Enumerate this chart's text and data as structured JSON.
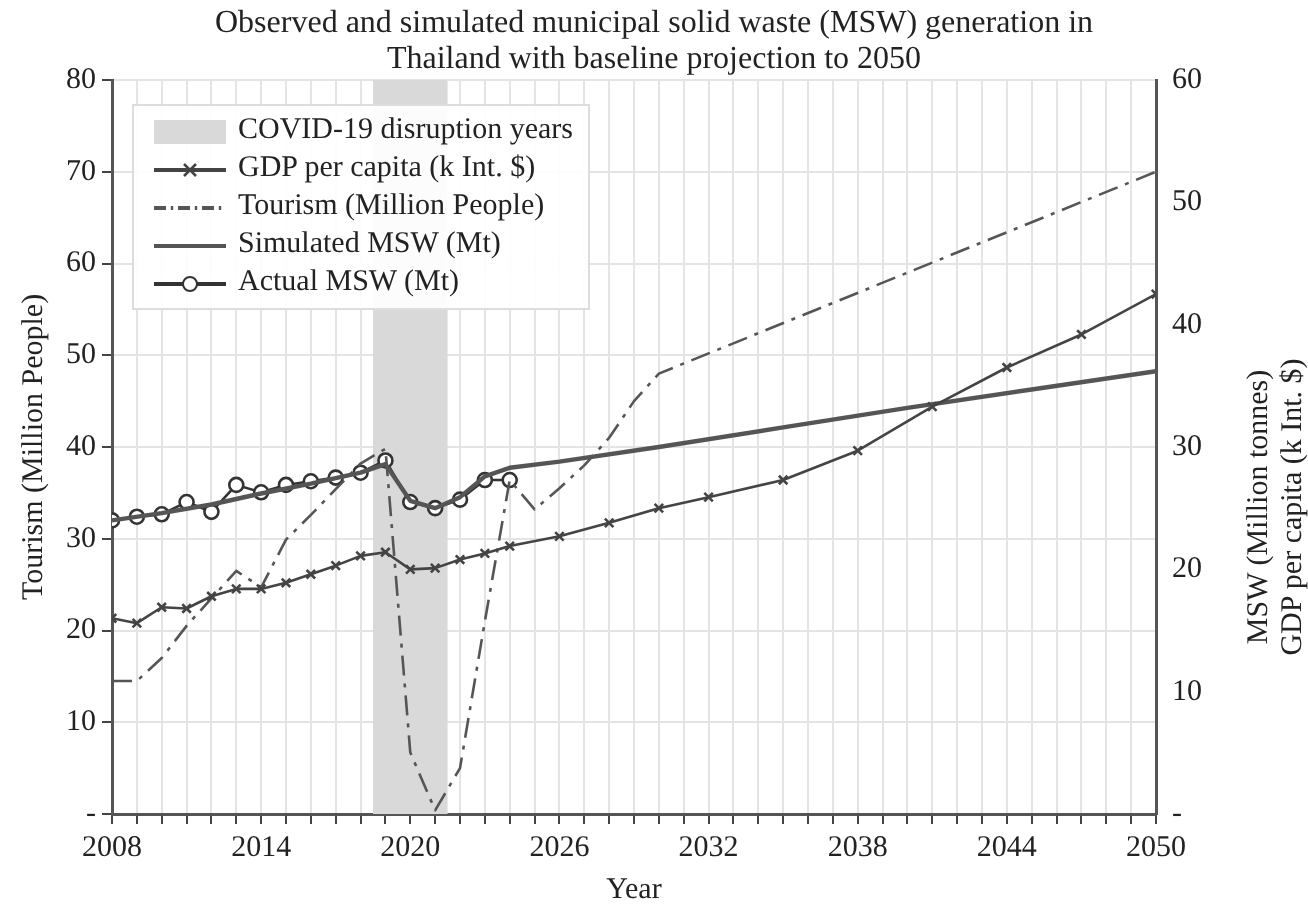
{
  "chart_data": {
    "type": "line",
    "title": "Observed and simulated municipal solid waste (MSW) generation in Thailand with baseline projection to 2050",
    "xlabel": "Year",
    "ylabel": "Tourism (Million People)",
    "y2label": "MSW (Million tonnes)\nGDP per capita (k Int. $)",
    "xlim": [
      2008,
      2050
    ],
    "xticks": [
      2008,
      {
        "value": 2009,
        "label": null
      },
      {
        "value": 2010,
        "label": null
      },
      {
        "value": 2011,
        "label": null
      },
      {
        "value": 2012,
        "label": null
      },
      {
        "value": 2013,
        "label": null
      },
      2014,
      {
        "value": 2015,
        "label": null
      },
      {
        "value": 2016,
        "label": null
      },
      {
        "value": 2017,
        "label": null
      },
      {
        "value": 2018,
        "label": null
      },
      {
        "value": 2019,
        "label": null
      },
      2020,
      {
        "value": 2021,
        "label": null
      },
      {
        "value": 2022,
        "label": null
      },
      {
        "value": 2023,
        "label": null
      },
      {
        "value": 2024,
        "label": null
      },
      {
        "value": 2025,
        "label": null
      },
      2026,
      {
        "value": 2027,
        "label": null
      },
      {
        "value": 2028,
        "label": null
      },
      {
        "value": 2029,
        "label": null
      },
      {
        "value": 2030,
        "label": null
      },
      {
        "value": 2031,
        "label": null
      },
      2032,
      {
        "value": 2033,
        "label": null
      },
      {
        "value": 2034,
        "label": null
      },
      {
        "value": 2035,
        "label": null
      },
      {
        "value": 2036,
        "label": null
      },
      {
        "value": 2037,
        "label": null
      },
      2038,
      {
        "value": 2039,
        "label": null
      },
      {
        "value": 2040,
        "label": null
      },
      {
        "value": 2041,
        "label": null
      },
      {
        "value": 2042,
        "label": null
      },
      {
        "value": 2043,
        "label": null
      },
      2044,
      {
        "value": 2045,
        "label": null
      },
      {
        "value": 2046,
        "label": null
      },
      {
        "value": 2047,
        "label": null
      },
      {
        "value": 2048,
        "label": null
      },
      {
        "value": 2049,
        "label": null
      },
      2050
    ],
    "ylim": [
      0,
      80
    ],
    "yticks": [
      {
        "value": 0,
        "label": "-"
      },
      10,
      20,
      30,
      40,
      50,
      60,
      70,
      80
    ],
    "y2lim": [
      0,
      60
    ],
    "y2ticks": [
      {
        "value": 0,
        "label": "-"
      },
      10,
      20,
      30,
      40,
      50,
      60
    ],
    "grid": true,
    "legend": "top left",
    "bands": [
      {
        "axis": "x",
        "from": 2018.5,
        "to": 2021.5,
        "label": "COVID-19 disruption years",
        "color": "#d9d9d9"
      }
    ],
    "series": [
      {
        "name": "GDP per capita (k Int. $)",
        "color": "#444444",
        "axis": "y2",
        "marker": "cross",
        "line_style": "solid",
        "x": [
          2008,
          2009,
          2010,
          2011,
          2012,
          2013,
          2014,
          2015,
          2016,
          2017,
          2018,
          2019,
          2020,
          2021,
          2022,
          2023,
          2024,
          2026,
          2028,
          2030,
          2032,
          2035,
          2038,
          2041,
          2044,
          2047,
          2050
        ],
        "values": [
          16.0,
          15.6,
          16.9,
          16.8,
          17.8,
          18.4,
          18.4,
          18.9,
          19.6,
          20.3,
          21.1,
          21.4,
          20.0,
          20.1,
          20.8,
          21.3,
          21.9,
          22.7,
          23.8,
          25.0,
          25.9,
          27.3,
          29.7,
          33.3,
          36.5,
          39.2,
          42.5
        ]
      },
      {
        "name": "Tourism (Million People)",
        "color": "#555555",
        "axis": "y",
        "marker": "none",
        "line_style": "dashed",
        "x": [
          2008,
          2009,
          2010,
          2011,
          2012,
          2013,
          2014,
          2015,
          2016,
          2017,
          2018,
          2019,
          2020,
          2021,
          2022,
          2023,
          2024,
          2025,
          2026,
          2027,
          2028,
          2029,
          2030,
          2040,
          2050
        ],
        "values": [
          14.5,
          14.5,
          17,
          20.5,
          23.5,
          26.5,
          24.7,
          29.9,
          32.6,
          35.4,
          38.2,
          39.8,
          6.7,
          0.4,
          5,
          21,
          36.4,
          33.2,
          35.5,
          38,
          41,
          45,
          48,
          59,
          70
        ]
      },
      {
        "name": "Simulated MSW (Mt)",
        "color": "#555555",
        "axis": "y2",
        "marker": "none",
        "line_style": "solid",
        "x": [
          2008,
          2010,
          2012,
          2014,
          2016,
          2018,
          2019,
          2020,
          2021,
          2022,
          2023,
          2024,
          2026,
          2030,
          2035,
          2040,
          2045,
          2050
        ],
        "values": [
          24.0,
          24.6,
          25.3,
          26.2,
          27.0,
          27.9,
          28.6,
          25.6,
          25.0,
          25.9,
          27.6,
          28.3,
          28.8,
          30.0,
          31.6,
          33.2,
          34.7,
          36.2
        ]
      },
      {
        "name": "Actual MSW (Mt)",
        "color": "#333333",
        "axis": "y2",
        "marker": "circle",
        "line_style": "solid",
        "x": [
          2008,
          2009,
          2010,
          2011,
          2012,
          2013,
          2014,
          2015,
          2016,
          2017,
          2018,
          2019,
          2020,
          2021,
          2022,
          2023,
          2024
        ],
        "values": [
          24.0,
          24.3,
          24.5,
          25.5,
          24.7,
          26.9,
          26.3,
          26.9,
          27.2,
          27.5,
          27.9,
          28.9,
          25.5,
          25.0,
          25.7,
          27.3,
          27.3
        ]
      }
    ]
  }
}
